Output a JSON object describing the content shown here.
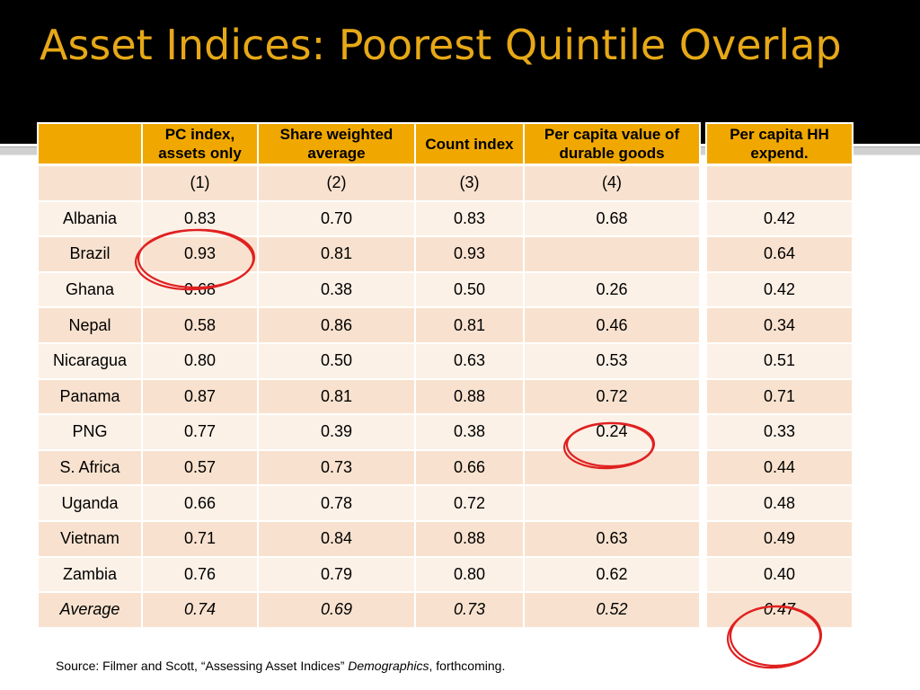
{
  "slide": {
    "title": "Asset Indices: Poorest Quintile Overlap"
  },
  "table": {
    "headers": [
      "",
      "PC index, assets only",
      "Share weighted average",
      "Count index",
      "Per capita value of durable goods"
    ],
    "numbers": [
      "",
      "(1)",
      "(2)",
      "(3)",
      "(4)"
    ],
    "rows": [
      {
        "country": "Albania",
        "c1": "0.83",
        "c2": "0.70",
        "c3": "0.83",
        "c4": "0.68",
        "hh": "0.42"
      },
      {
        "country": "Brazil",
        "c1": "0.93",
        "c2": "0.81",
        "c3": "0.93",
        "c4": "",
        "hh": "0.64"
      },
      {
        "country": "Ghana",
        "c1": "0.68",
        "c2": "0.38",
        "c3": "0.50",
        "c4": "0.26",
        "hh": "0.42"
      },
      {
        "country": "Nepal",
        "c1": "0.58",
        "c2": "0.86",
        "c3": "0.81",
        "c4": "0.46",
        "hh": "0.34"
      },
      {
        "country": "Nicaragua",
        "c1": "0.80",
        "c2": "0.50",
        "c3": "0.63",
        "c4": "0.53",
        "hh": "0.51"
      },
      {
        "country": "Panama",
        "c1": "0.87",
        "c2": "0.81",
        "c3": "0.88",
        "c4": "0.72",
        "hh": "0.71"
      },
      {
        "country": "PNG",
        "c1": "0.77",
        "c2": "0.39",
        "c3": "0.38",
        "c4": "0.24",
        "hh": "0.33"
      },
      {
        "country": "S. Africa",
        "c1": "0.57",
        "c2": "0.73",
        "c3": "0.66",
        "c4": "",
        "hh": "0.44"
      },
      {
        "country": "Uganda",
        "c1": "0.66",
        "c2": "0.78",
        "c3": "0.72",
        "c4": "",
        "hh": "0.48"
      },
      {
        "country": "Vietnam",
        "c1": "0.71",
        "c2": "0.84",
        "c3": "0.88",
        "c4": "0.63",
        "hh": "0.49"
      },
      {
        "country": "Zambia",
        "c1": "0.76",
        "c2": "0.79",
        "c3": "0.80",
        "c4": "0.62",
        "hh": "0.40"
      }
    ],
    "average": {
      "label": "Average",
      "c1": "0.74",
      "c2": "0.69",
      "c3": "0.73",
      "c4": "0.52",
      "hh": "0.47"
    }
  },
  "side_table": {
    "header": "Per capita HH expend."
  },
  "highlights": [
    "Brazil PC index 0.93",
    "PNG durable goods 0.24",
    "Average HH expend. 0.47"
  ],
  "colors": {
    "title": "#e6a817",
    "header_fill": "#f0a800",
    "row_fill": "#f8e2cf",
    "row_fill_alt": "#fcf1e7",
    "circle": "#e02020"
  },
  "source": {
    "prefix": "Source:  Filmer and Scott, “Assessing Asset Indices” ",
    "journal": "Demographics",
    "suffix": ", forthcoming."
  }
}
